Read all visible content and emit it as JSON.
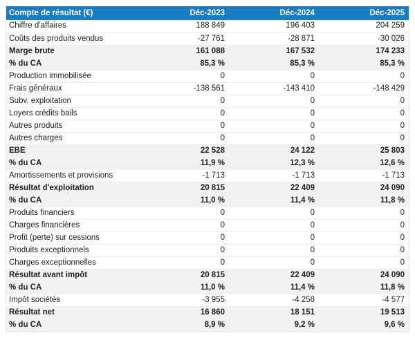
{
  "colors": {
    "header_bg": "#1a7dc3",
    "header_text": "#ffffff",
    "band_bg": "#f2f2f2",
    "row_border": "#ebebeb",
    "text": "#212121"
  },
  "table": {
    "header": {
      "title": "Compte de résultat (€)",
      "columns": [
        "Déc-2023",
        "Déc-2024",
        "Déc-2025"
      ]
    },
    "rows": [
      {
        "label": "Chiffre d'affaires",
        "values": [
          "188 849",
          "196 403",
          "204 259"
        ],
        "emphasis": false
      },
      {
        "label": "Coûts des produits vendus",
        "values": [
          "-27 761",
          "-28 871",
          "-30 026"
        ],
        "emphasis": false
      },
      {
        "label": "Marge brute",
        "values": [
          "161 088",
          "167 532",
          "174 233"
        ],
        "emphasis": true
      },
      {
        "label": "% du CA",
        "values": [
          "85,3 %",
          "85,3 %",
          "85,3 %"
        ],
        "emphasis": true
      },
      {
        "label": "Production immobilisée",
        "values": [
          "0",
          "0",
          "0"
        ],
        "emphasis": false
      },
      {
        "label": "Frais généraux",
        "values": [
          "-138 561",
          "-143 410",
          "-148 429"
        ],
        "emphasis": false
      },
      {
        "label": "Subv. exploitation",
        "values": [
          "0",
          "0",
          "0"
        ],
        "emphasis": false
      },
      {
        "label": "Loyers crédits bails",
        "values": [
          "0",
          "0",
          "0"
        ],
        "emphasis": false
      },
      {
        "label": "Autres produits",
        "values": [
          "0",
          "0",
          "0"
        ],
        "emphasis": false
      },
      {
        "label": "Autres charges",
        "values": [
          "0",
          "0",
          "0"
        ],
        "emphasis": false
      },
      {
        "label": "EBE",
        "values": [
          "22 528",
          "24 122",
          "25 803"
        ],
        "emphasis": true
      },
      {
        "label": "% du CA",
        "values": [
          "11,9 %",
          "12,3 %",
          "12,6 %"
        ],
        "emphasis": true
      },
      {
        "label": "Amortissements et provisions",
        "values": [
          "-1 713",
          "-1 713",
          "-1 713"
        ],
        "emphasis": false
      },
      {
        "label": "Résultat d'exploitation",
        "values": [
          "20 815",
          "22 409",
          "24 090"
        ],
        "emphasis": true
      },
      {
        "label": "% du CA",
        "values": [
          "11,0 %",
          "11,4 %",
          "11,8 %"
        ],
        "emphasis": true
      },
      {
        "label": "Produits financiers",
        "values": [
          "0",
          "0",
          "0"
        ],
        "emphasis": false
      },
      {
        "label": "Charges financières",
        "values": [
          "0",
          "0",
          "0"
        ],
        "emphasis": false
      },
      {
        "label": "Profit (perte) sur cessions",
        "values": [
          "0",
          "0",
          "0"
        ],
        "emphasis": false
      },
      {
        "label": "Produits exceptionnels",
        "values": [
          "0",
          "0",
          "0"
        ],
        "emphasis": false
      },
      {
        "label": "Charges exceptionnelles",
        "values": [
          "0",
          "0",
          "0"
        ],
        "emphasis": false
      },
      {
        "label": "Résultat avant impôt",
        "values": [
          "20 815",
          "22 409",
          "24 090"
        ],
        "emphasis": true
      },
      {
        "label": "% du CA",
        "values": [
          "11,0 %",
          "11,4 %",
          "11,8 %"
        ],
        "emphasis": true
      },
      {
        "label": "Impôt sociétés",
        "values": [
          "-3 955",
          "-4 258",
          "-4 577"
        ],
        "emphasis": false
      },
      {
        "label": "Résultat net",
        "values": [
          "16 860",
          "18 151",
          "19 513"
        ],
        "emphasis": true
      },
      {
        "label": "% du CA",
        "values": [
          "8,9 %",
          "9,2 %",
          "9,6 %"
        ],
        "emphasis": true
      }
    ]
  }
}
